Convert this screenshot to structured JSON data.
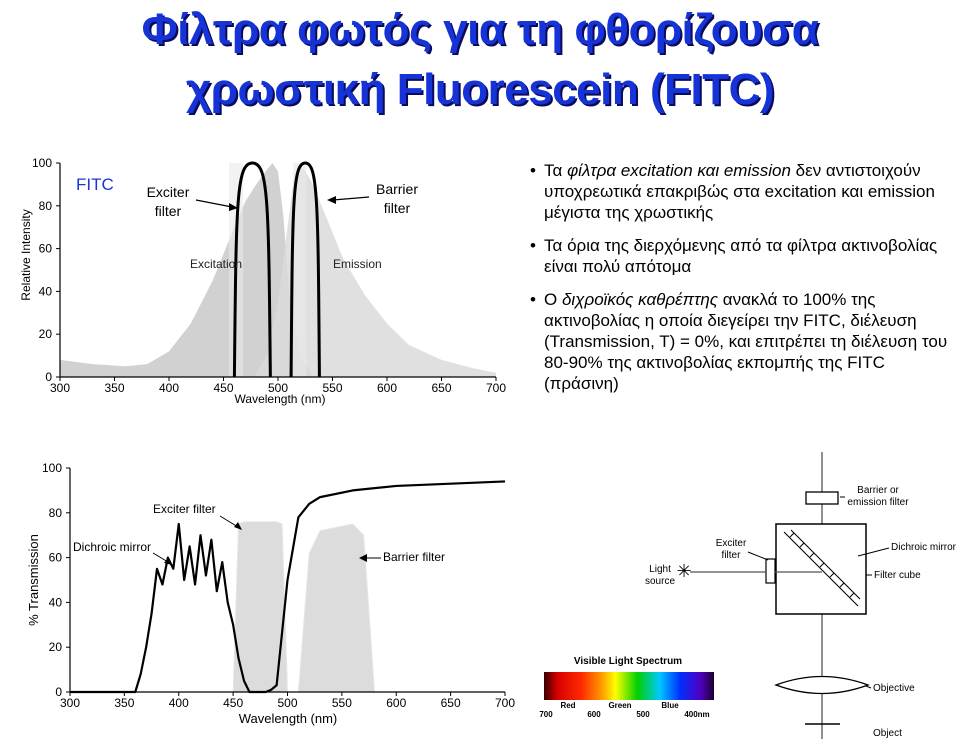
{
  "title": {
    "line1": "Φίλτρα φωτός για τη φθορίζουσα",
    "line2": "χρωστική Fluorescein (FITC)"
  },
  "top_chart": {
    "y_ticks": [
      "100",
      "80",
      "60",
      "40",
      "20",
      "0"
    ],
    "x_ticks": [
      "300",
      "350",
      "400",
      "450",
      "500",
      "550",
      "600",
      "650",
      "700"
    ],
    "ylabel": "Relative Intensity",
    "xlabel": "Wavelength (nm)",
    "fitc_label": "FITC",
    "exciter_label": {
      "line1": "Exciter",
      "line2": "filter"
    },
    "barrier_label": {
      "line1": "Barrier",
      "line2": "filter"
    },
    "excitation_label": "Excitation",
    "emission_label": "Emission"
  },
  "bullets": {
    "b1": {
      "part1": "Τα ",
      "part2_italic": "φίλτρα excitation και emission",
      "part3": " δεν αντιστοιχούν υποχρεωτικά επακριβώς στα excitation και emission μέγιστα της χρωστικής"
    },
    "b2": {
      "text": "Τα όρια της διερχόμενης από τα φίλτρα ακτινοβολίας είναι πολύ απότομα"
    },
    "b3": {
      "part1": "Ο ",
      "part2_italic": "διχροϊκός καθρέπτης",
      "part3": " ανακλά το 100% της ακτινοβολίας η οποία διεγείρει την FITC, διέλευση (Transmission, T) = 0%, και επιτρέπει τη διέλευση του 80-90% της ακτινοβολίας εκπομπής της FITC (πράσινη)"
    }
  },
  "bottom_chart": {
    "y_ticks": [
      "100",
      "80",
      "60",
      "40",
      "20",
      "0"
    ],
    "x_ticks": [
      "300",
      "350",
      "400",
      "450",
      "500",
      "550",
      "600",
      "650",
      "700"
    ],
    "ylabel": "% Transmission",
    "xlabel": "Wavelength (nm)",
    "exciter_label": "Exciter filter",
    "dichroic_label": "Dichroic mirror",
    "barrier_label": "Barrier filter"
  },
  "cube_diagram": {
    "barrier_label": {
      "line1": "Barrier or",
      "line2": "emission filter"
    },
    "exciter_label": {
      "line1": "Exciter",
      "line2": "filter"
    },
    "dichroic_label": "Dichroic mirror",
    "light_source_label": {
      "line1": "Light",
      "line2": "source"
    },
    "filter_cube_label": "Filter cube",
    "objective_label": "Objective",
    "object_label": "Object"
  },
  "spectrum": {
    "title": "Visible Light Spectrum",
    "colors": [
      "Red",
      "Green",
      "Blue"
    ],
    "nm_ticks": [
      "700",
      "600",
      "500",
      "400nm"
    ]
  },
  "chart_data": [
    {
      "type": "area",
      "ylabel": "Relative Intensity",
      "xlabel": "Wavelength (nm)",
      "xlim": [
        300,
        700
      ],
      "ylim": [
        0,
        100
      ],
      "x_ticks": [
        300,
        350,
        400,
        450,
        500,
        550,
        600,
        650,
        700
      ],
      "y_ticks": [
        0,
        20,
        40,
        60,
        80,
        100
      ],
      "grid": false,
      "series": [
        {
          "name": "Excitation",
          "x": [
            300,
            330,
            360,
            380,
            400,
            420,
            440,
            460,
            470,
            480,
            490,
            495,
            500,
            505,
            510,
            520,
            530
          ],
          "y": [
            8,
            6,
            5,
            6,
            12,
            25,
            45,
            70,
            82,
            90,
            97,
            100,
            96,
            75,
            40,
            10,
            2
          ]
        },
        {
          "name": "Emission",
          "x": [
            480,
            490,
            500,
            510,
            515,
            520,
            530,
            540,
            560,
            580,
            600,
            620,
            650,
            680,
            700
          ],
          "y": [
            2,
            10,
            35,
            75,
            95,
            100,
            92,
            80,
            55,
            38,
            25,
            15,
            8,
            4,
            2
          ]
        }
      ]
    },
    {
      "type": "line",
      "ylabel": "% Transmission",
      "xlabel": "Wavelength (nm)",
      "xlim": [
        300,
        700
      ],
      "ylim": [
        0,
        100
      ],
      "x_ticks": [
        300,
        350,
        400,
        450,
        500,
        550,
        600,
        650,
        700
      ],
      "y_ticks": [
        0,
        20,
        40,
        60,
        80,
        100
      ],
      "grid": false,
      "series": [
        {
          "name": "Dichroic mirror",
          "x": [
            300,
            340,
            360,
            365,
            370,
            375,
            380,
            385,
            390,
            395,
            400,
            405,
            410,
            415,
            420,
            425,
            430,
            435,
            440,
            445,
            450,
            455,
            460,
            465,
            470,
            475,
            480,
            485,
            490,
            500,
            510,
            520,
            530,
            560,
            600,
            650,
            700
          ],
          "y": [
            0,
            0,
            0,
            8,
            20,
            35,
            55,
            48,
            60,
            55,
            75,
            50,
            65,
            48,
            70,
            52,
            68,
            45,
            58,
            40,
            30,
            15,
            5,
            0,
            0,
            0,
            0,
            1,
            3,
            50,
            78,
            84,
            87,
            90,
            92,
            93,
            94
          ]
        },
        {
          "name": "Exciter filter",
          "x": [
            450,
            455,
            460,
            490,
            495,
            500
          ],
          "y": [
            0,
            75,
            76,
            76,
            75,
            0
          ]
        },
        {
          "name": "Barrier filter",
          "x": [
            510,
            520,
            530,
            560,
            570,
            580
          ],
          "y": [
            0,
            62,
            72,
            75,
            70,
            0
          ]
        }
      ]
    }
  ]
}
